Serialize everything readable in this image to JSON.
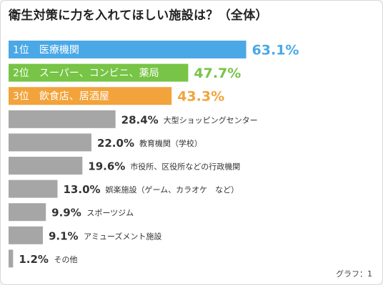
{
  "chart_data": {
    "type": "bar",
    "orientation": "horizontal",
    "title": "衛生対策に力を入れてほしい施設は？（全体）",
    "categories": [
      "医療機関",
      "スーパー、コンビニ、薬局",
      "飲食店、居酒屋",
      "大型ショッピングセンター",
      "教育機関（学校）",
      "市役所、区役所などの行政機関",
      "娯楽施設（ゲーム、カラオケ　など）",
      "スポーツジム",
      "アミューズメント施設",
      "その他"
    ],
    "ranks": [
      "1位",
      "2位",
      "3位"
    ],
    "values": [
      63.1,
      47.7,
      43.3,
      28.4,
      22.0,
      19.6,
      13.0,
      9.9,
      9.1,
      1.2
    ],
    "value_labels": [
      "63.1%",
      "47.7%",
      "43.3%",
      "28.4%",
      "22.0%",
      "19.6%",
      "13.0%",
      "9.9%",
      "9.1%",
      "1.2%"
    ],
    "unit": "%",
    "xlim": [
      0,
      100
    ],
    "grid": false,
    "legend": "none",
    "colors": {
      "rank1": "#4aa8e6",
      "rank2": "#77c446",
      "rank3": "#f2a33b",
      "other": "#a6a6a6"
    }
  },
  "footer": {
    "graph_label": "グラフ：1"
  }
}
